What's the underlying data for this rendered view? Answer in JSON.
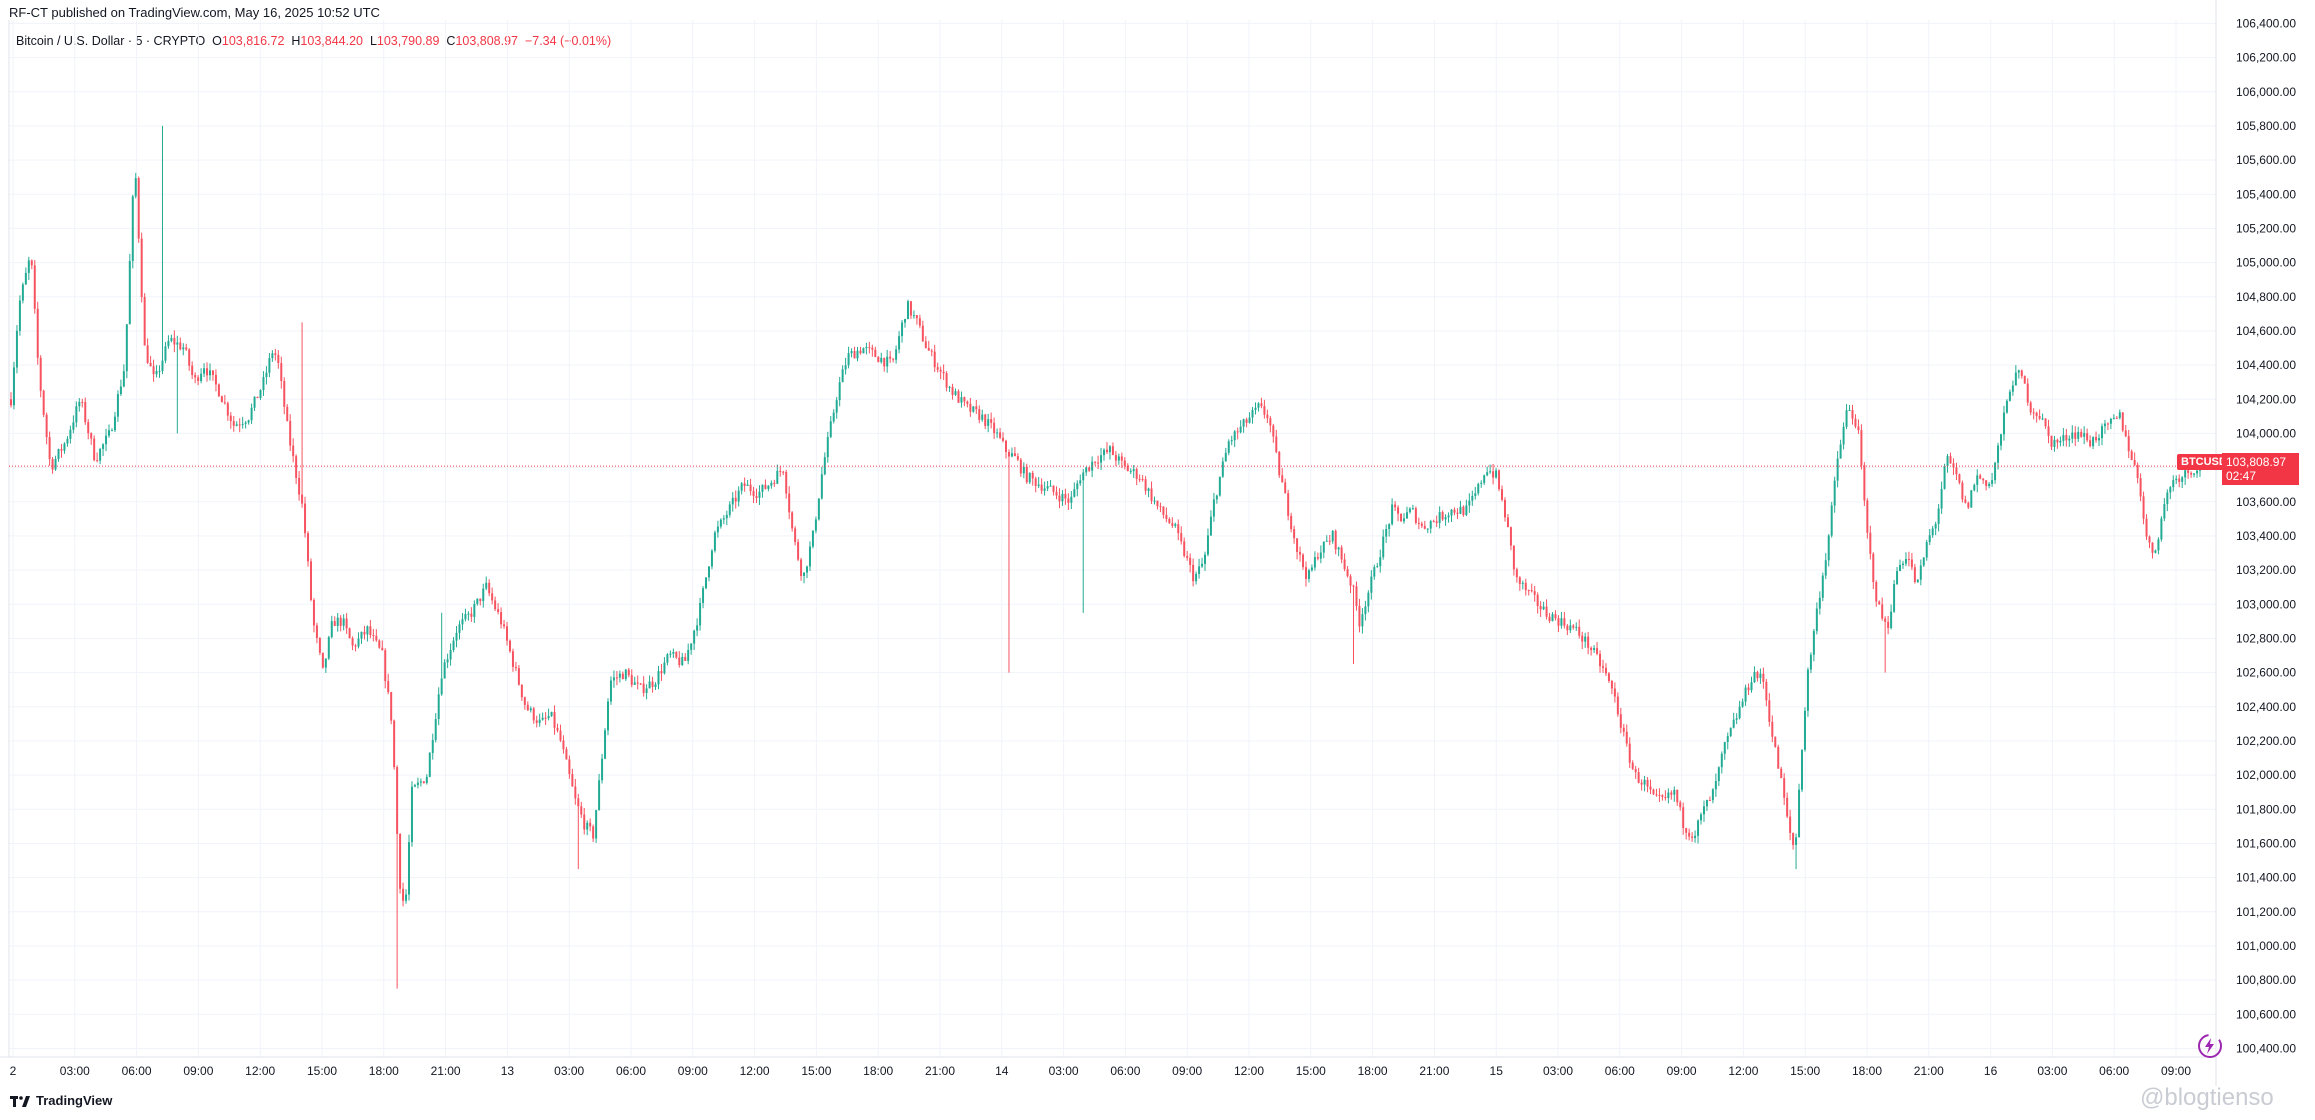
{
  "publish_line": "RF-CT published on TradingView.com, May 16, 2025 10:52 UTC",
  "legend": {
    "symbol": "Bitcoin / U.S. Dollar · 5 · CRYPTO",
    "open_label": "O",
    "open": "103,816.72",
    "high_label": "H",
    "high": "103,844.20",
    "low_label": "L",
    "low": "103,790.89",
    "close_label": "C",
    "close": "103,808.97",
    "change": "−7.34 (−0.01%)"
  },
  "price_tag": {
    "symbol": "BTCUSD",
    "price": "103,808.97",
    "countdown": "02:47"
  },
  "branding": "TradingView",
  "watermark": "@blogtienso",
  "colors": {
    "up": "#22ab94",
    "down": "#f7525f",
    "last_price_line": "#f23645",
    "grid": "#f0f3fa"
  },
  "chart_data": {
    "type": "candlestick",
    "symbol": "BTCUSD",
    "interval": "5",
    "y_tick_labels": [
      "100,400.00",
      "100,600.00",
      "100,800.00",
      "101,000.00",
      "101,200.00",
      "101,400.00",
      "101,600.00",
      "101,800.00",
      "102,000.00",
      "102,200.00",
      "102,400.00",
      "102,600.00",
      "102,800.00",
      "103,000.00",
      "103,200.00",
      "103,400.00",
      "103,600.00",
      "103,800.00",
      "104,000.00",
      "104,200.00",
      "104,400.00",
      "104,600.00",
      "104,800.00",
      "105,000.00",
      "105,200.00",
      "105,400.00",
      "105,600.00",
      "105,800.00",
      "106,000.00",
      "106,200.00",
      "106,400.00"
    ],
    "ylim": [
      100350,
      106420
    ],
    "x_tick_labels": [
      "2",
      "03:00",
      "06:00",
      "09:00",
      "12:00",
      "15:00",
      "18:00",
      "21:00",
      "13",
      "03:00",
      "06:00",
      "09:00",
      "12:00",
      "15:00",
      "18:00",
      "21:00",
      "14",
      "03:00",
      "06:00",
      "09:00",
      "12:00",
      "15:00",
      "18:00",
      "21:00",
      "15",
      "03:00",
      "06:00",
      "09:00",
      "12:00",
      "15:00",
      "18:00",
      "21:00",
      "16",
      "03:00",
      "06:00",
      "09:00"
    ],
    "last_price": 103808.97,
    "price_path": [
      [
        0,
        104200
      ],
      [
        8,
        104750
      ],
      [
        20,
        105050
      ],
      [
        28,
        104350
      ],
      [
        40,
        103800
      ],
      [
        55,
        103950
      ],
      [
        70,
        104200
      ],
      [
        85,
        103850
      ],
      [
        100,
        104000
      ],
      [
        115,
        104400
      ],
      [
        125,
        105600
      ],
      [
        135,
        104500
      ],
      [
        145,
        104300
      ],
      [
        160,
        104550
      ],
      [
        175,
        104500
      ],
      [
        185,
        104300
      ],
      [
        195,
        104400
      ],
      [
        210,
        104250
      ],
      [
        225,
        104050
      ],
      [
        240,
        104100
      ],
      [
        255,
        104300
      ],
      [
        265,
        104500
      ],
      [
        270,
        104400
      ],
      [
        280,
        104000
      ],
      [
        295,
        103550
      ],
      [
        305,
        102900
      ],
      [
        315,
        102600
      ],
      [
        325,
        102900
      ],
      [
        335,
        102900
      ],
      [
        345,
        102750
      ],
      [
        360,
        102850
      ],
      [
        375,
        102700
      ],
      [
        385,
        102300
      ],
      [
        392,
        101400
      ],
      [
        398,
        101200
      ],
      [
        405,
        101900
      ],
      [
        420,
        102000
      ],
      [
        435,
        102600
      ],
      [
        450,
        102850
      ],
      [
        465,
        102950
      ],
      [
        480,
        103100
      ],
      [
        495,
        102900
      ],
      [
        510,
        102600
      ],
      [
        520,
        102400
      ],
      [
        535,
        102300
      ],
      [
        545,
        102350
      ],
      [
        555,
        102200
      ],
      [
        570,
        101850
      ],
      [
        580,
        101700
      ],
      [
        588,
        101650
      ],
      [
        595,
        102000
      ],
      [
        605,
        102550
      ],
      [
        620,
        102600
      ],
      [
        635,
        102500
      ],
      [
        650,
        102550
      ],
      [
        665,
        102700
      ],
      [
        680,
        102650
      ],
      [
        695,
        102950
      ],
      [
        710,
        103400
      ],
      [
        725,
        103550
      ],
      [
        740,
        103700
      ],
      [
        755,
        103650
      ],
      [
        765,
        103700
      ],
      [
        780,
        103800
      ],
      [
        790,
        103400
      ],
      [
        800,
        103150
      ],
      [
        810,
        103400
      ],
      [
        820,
        103800
      ],
      [
        835,
        104250
      ],
      [
        845,
        104450
      ],
      [
        860,
        104500
      ],
      [
        875,
        104450
      ],
      [
        890,
        104400
      ],
      [
        905,
        104750
      ],
      [
        915,
        104650
      ],
      [
        925,
        104500
      ],
      [
        935,
        104400
      ],
      [
        950,
        104250
      ],
      [
        965,
        104150
      ],
      [
        980,
        104100
      ],
      [
        995,
        104000
      ],
      [
        1005,
        103900
      ],
      [
        1015,
        103850
      ],
      [
        1025,
        103750
      ],
      [
        1040,
        103700
      ],
      [
        1055,
        103650
      ],
      [
        1070,
        103600
      ],
      [
        1080,
        103750
      ],
      [
        1095,
        103850
      ],
      [
        1110,
        103900
      ],
      [
        1125,
        103800
      ],
      [
        1140,
        103750
      ],
      [
        1150,
        103650
      ],
      [
        1160,
        103550
      ],
      [
        1175,
        103450
      ],
      [
        1185,
        103300
      ],
      [
        1195,
        103150
      ],
      [
        1205,
        103250
      ],
      [
        1215,
        103600
      ],
      [
        1230,
        103950
      ],
      [
        1245,
        104050
      ],
      [
        1260,
        104150
      ],
      [
        1270,
        104100
      ],
      [
        1280,
        103800
      ],
      [
        1290,
        103550
      ],
      [
        1300,
        103300
      ],
      [
        1310,
        103150
      ],
      [
        1320,
        103300
      ],
      [
        1335,
        103400
      ],
      [
        1345,
        103250
      ],
      [
        1355,
        103100
      ],
      [
        1362,
        102900
      ],
      [
        1375,
        103150
      ],
      [
        1385,
        103350
      ],
      [
        1395,
        103550
      ],
      [
        1405,
        103500
      ],
      [
        1415,
        103550
      ],
      [
        1425,
        103450
      ],
      [
        1440,
        103500
      ],
      [
        1455,
        103550
      ],
      [
        1470,
        103550
      ],
      [
        1480,
        103650
      ],
      [
        1490,
        103800
      ],
      [
        1500,
        103750
      ],
      [
        1510,
        103500
      ],
      [
        1520,
        103150
      ],
      [
        1535,
        103050
      ],
      [
        1550,
        102950
      ],
      [
        1565,
        102900
      ],
      [
        1580,
        102850
      ],
      [
        1595,
        102750
      ],
      [
        1610,
        102600
      ],
      [
        1620,
        102450
      ],
      [
        1630,
        102200
      ],
      [
        1640,
        102000
      ],
      [
        1650,
        101950
      ],
      [
        1660,
        101850
      ],
      [
        1670,
        101850
      ],
      [
        1680,
        101900
      ],
      [
        1690,
        101700
      ],
      [
        1700,
        101650
      ],
      [
        1710,
        101800
      ],
      [
        1720,
        101900
      ],
      [
        1730,
        102150
      ],
      [
        1740,
        102300
      ],
      [
        1750,
        102450
      ],
      [
        1760,
        102600
      ],
      [
        1770,
        102550
      ],
      [
        1780,
        102200
      ],
      [
        1790,
        101900
      ],
      [
        1795,
        101700
      ],
      [
        1802,
        101550
      ],
      [
        1808,
        102100
      ],
      [
        1815,
        102600
      ],
      [
        1825,
        103000
      ],
      [
        1835,
        103350
      ],
      [
        1845,
        103850
      ],
      [
        1855,
        104150
      ],
      [
        1865,
        104050
      ],
      [
        1875,
        103400
      ],
      [
        1885,
        103000
      ],
      [
        1895,
        102850
      ],
      [
        1905,
        103200
      ],
      [
        1915,
        103300
      ],
      [
        1925,
        103100
      ],
      [
        1935,
        103350
      ],
      [
        1945,
        103500
      ],
      [
        1955,
        103850
      ],
      [
        1965,
        103750
      ],
      [
        1975,
        103550
      ],
      [
        1985,
        103750
      ],
      [
        2000,
        103700
      ],
      [
        2010,
        104000
      ],
      [
        2020,
        104300
      ],
      [
        2030,
        104350
      ],
      [
        2040,
        104150
      ],
      [
        2050,
        104100
      ],
      [
        2060,
        103950
      ],
      [
        2070,
        103950
      ],
      [
        2080,
        104000
      ],
      [
        2090,
        104000
      ],
      [
        2100,
        103950
      ],
      [
        2110,
        104000
      ],
      [
        2120,
        104050
      ],
      [
        2130,
        104100
      ],
      [
        2140,
        103900
      ],
      [
        2150,
        103700
      ],
      [
        2158,
        103350
      ],
      [
        2165,
        103300
      ],
      [
        2172,
        103500
      ],
      [
        2180,
        103700
      ],
      [
        2190,
        103750
      ],
      [
        2200,
        103780
      ],
      [
        2210,
        103810
      ]
    ],
    "spikes": [
      [
        155,
        105800
      ],
      [
        170,
        104000
      ],
      [
        295,
        104650
      ],
      [
        392,
        100750
      ],
      [
        435,
        102950
      ],
      [
        575,
        101450
      ],
      [
        1010,
        102600
      ],
      [
        1085,
        102950
      ],
      [
        1356,
        102650
      ],
      [
        1805,
        101450
      ],
      [
        1895,
        102600
      ]
    ]
  }
}
